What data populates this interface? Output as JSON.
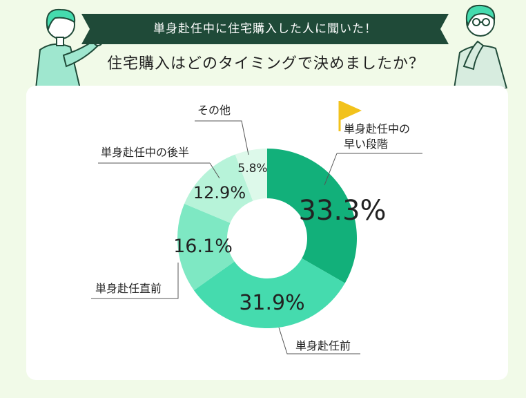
{
  "header": {
    "banner": "単身赴任中に住宅購入した人に聞いた！",
    "question": "住宅購入はどのタイミングで決めましたか？"
  },
  "colors": {
    "background": "#f1fae8",
    "banner": "#1f4a38",
    "card": "#ffffff",
    "flag": "#f2c21b"
  },
  "chart_data": {
    "type": "pie",
    "donut": true,
    "slices": [
      {
        "label": "単身赴任中の早い段階",
        "value": 33.3,
        "display": "33.3%",
        "color": "#12b07a"
      },
      {
        "label": "単身赴任前",
        "value": 31.9,
        "display": "31.9%",
        "color": "#45dbae"
      },
      {
        "label": "単身赴任直前",
        "value": 16.1,
        "display": "16.1%",
        "color": "#7ee8c3"
      },
      {
        "label": "単身赴任中の後半",
        "value": 12.9,
        "display": "12.9%",
        "color": "#b7f3d9"
      },
      {
        "label": "その他",
        "value": 5.8,
        "display": "5.8%",
        "color": "#ddf9ea"
      }
    ]
  }
}
